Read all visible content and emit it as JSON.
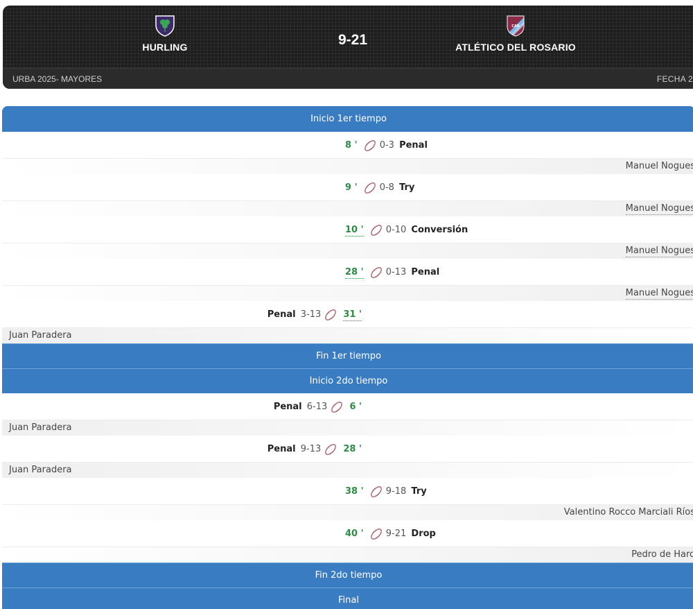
{
  "header": {
    "home_team": "HURLING",
    "away_team": "ATLÉTICO DEL ROSARIO",
    "score": "9-21",
    "league": "URBA 2025- MAYORES",
    "round": "FECHA 2",
    "home_logo_icon": "shamrock-shield-icon",
    "away_logo_icon": "car-shield-icon",
    "away_logo_letters": "CAR"
  },
  "colors": {
    "banner": "#3a7cc1",
    "minute": "#2e8b47",
    "header_bg": "#1e1e1e"
  },
  "timeline": [
    {
      "kind": "banner",
      "label": "Inicio 1er tiempo"
    },
    {
      "kind": "event",
      "team": "away",
      "minute": "8 '",
      "score": "0-3",
      "type": "Penal",
      "player": "Manuel Nogues"
    },
    {
      "kind": "event",
      "team": "away",
      "minute": "9 '",
      "score": "0-8",
      "type": "Try",
      "player": "Manuel Nogues"
    },
    {
      "kind": "event",
      "team": "away",
      "minute": "10 '",
      "score": "0-10",
      "type": "Conversión",
      "player": "Manuel Nogues"
    },
    {
      "kind": "event",
      "team": "away",
      "minute": "28 '",
      "score": "0-13",
      "type": "Penal",
      "player": "Manuel Nogues"
    },
    {
      "kind": "event",
      "team": "home",
      "minute": "31 '",
      "score": "3-13",
      "type": "Penal",
      "player": "Juan Paradera"
    },
    {
      "kind": "banner",
      "label": "Fin 1er tiempo"
    },
    {
      "kind": "banner",
      "label": "Inicio 2do tiempo"
    },
    {
      "kind": "event",
      "team": "home",
      "minute": "6 '",
      "score": "6-13",
      "type": "Penal",
      "player": "Juan Paradera"
    },
    {
      "kind": "event",
      "team": "home",
      "minute": "28 '",
      "score": "9-13",
      "type": "Penal",
      "player": "Juan Paradera"
    },
    {
      "kind": "event",
      "team": "away",
      "minute": "38 '",
      "score": "9-18",
      "type": "Try",
      "player": "Valentino Rocco Marciali Ríos"
    },
    {
      "kind": "event",
      "team": "away",
      "minute": "40 '",
      "score": "9-21",
      "type": "Drop",
      "player": "Pedro de Haro"
    },
    {
      "kind": "banner",
      "label": "Fin 2do tiempo"
    },
    {
      "kind": "banner",
      "label": "Final"
    }
  ]
}
